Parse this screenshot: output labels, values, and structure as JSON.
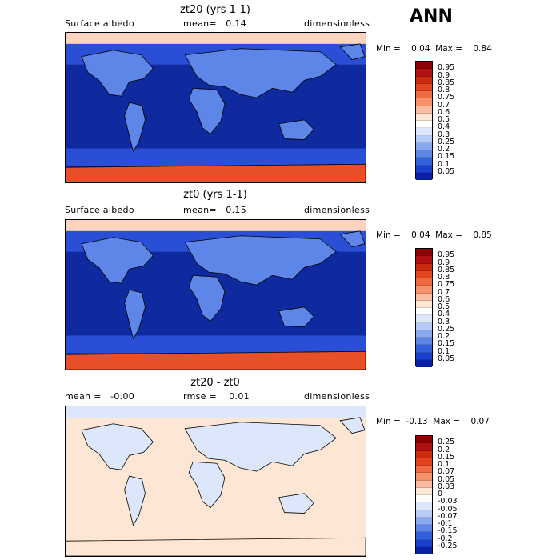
{
  "header": {
    "season": "ANN"
  },
  "panels": [
    {
      "title": "zt20 (yrs 1-1)",
      "left_text": "Surface albedo",
      "mid_text": "mean=   0.14",
      "right_text": "dimensionless",
      "minmax": "Min =    0.04  Max =    0.84",
      "colorbar": {
        "labels": [
          "0.95",
          "0.9",
          "0.85",
          "0.8",
          "0.75",
          "0.7",
          "0.6",
          "0.5",
          "0.4",
          "0.3",
          "0.25",
          "0.2",
          "0.15",
          "0.1",
          "0.05"
        ],
        "colors": [
          "#8b0000",
          "#b01010",
          "#cc2a0f",
          "#e2441f",
          "#ef6a3e",
          "#f5926c",
          "#f9bda1",
          "#fde6d4",
          "#ffffff",
          "#dce7fb",
          "#b6cbf6",
          "#8aa8f0",
          "#5d86e8",
          "#3260dc",
          "#1a3fd0",
          "#0a20a8"
        ]
      },
      "map_colors": {
        "ocean": "#0e2a9e",
        "land": "#5d86e8",
        "midlat": "#2a4fd6",
        "antarctic": "#e8502a",
        "arctic": "#fbd3bf"
      }
    },
    {
      "title": "zt0 (yrs 1-1)",
      "left_text": "Surface albedo",
      "mid_text": "mean=   0.15",
      "right_text": "dimensionless",
      "minmax": "Min =    0.04  Max =    0.85",
      "colorbar": {
        "labels": [
          "0.95",
          "0.9",
          "0.85",
          "0.8",
          "0.75",
          "0.7",
          "0.6",
          "0.5",
          "0.4",
          "0.3",
          "0.25",
          "0.2",
          "0.15",
          "0.1",
          "0.05"
        ],
        "colors": [
          "#8b0000",
          "#b01010",
          "#cc2a0f",
          "#e2441f",
          "#ef6a3e",
          "#f5926c",
          "#f9bda1",
          "#fde6d4",
          "#ffffff",
          "#dce7fb",
          "#b6cbf6",
          "#8aa8f0",
          "#5d86e8",
          "#3260dc",
          "#1a3fd0",
          "#0a20a8"
        ]
      },
      "map_colors": {
        "ocean": "#0e2a9e",
        "land": "#5d86e8",
        "midlat": "#2a4fd6",
        "antarctic": "#e8502a",
        "arctic": "#fbd3bf"
      }
    },
    {
      "title": "zt20 - zt0",
      "left_text": "mean =   -0.00",
      "mid_text": "rmse =    0.01",
      "right_text": "dimensionless",
      "minmax": "Min =  -0.13  Max =    0.07",
      "colorbar": {
        "labels": [
          "0.25",
          "0.2",
          "0.15",
          "0.1",
          "0.07",
          "0.05",
          "0.03",
          "0",
          "-0.03",
          "-0.05",
          "-0.07",
          "-0.1",
          "-0.15",
          "-0.2",
          "-0.25"
        ],
        "colors": [
          "#8b0000",
          "#b01010",
          "#cc2a0f",
          "#e2441f",
          "#ef6a3e",
          "#f5926c",
          "#f9bda1",
          "#fde6d4",
          "#ffffff",
          "#dce7fb",
          "#b6cbf6",
          "#8aa8f0",
          "#5d86e8",
          "#3260dc",
          "#1a3fd0",
          "#0a20a8"
        ]
      },
      "map_colors": {
        "ocean": "#fde6d4",
        "land": "#dce7fb",
        "midlat": "#fde6d4",
        "antarctic": "#fde6d4",
        "arctic": "#dce7fb"
      }
    }
  ]
}
